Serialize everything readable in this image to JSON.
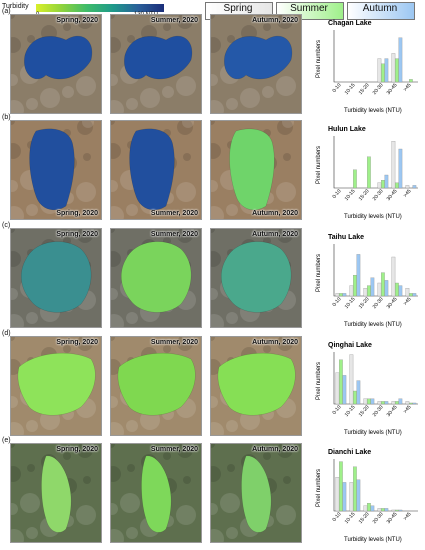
{
  "header": {
    "colorbar_title": "Turbidity",
    "colorbar_min": "0",
    "colorbar_max": "130 NTU",
    "legend": [
      {
        "label": "Spring",
        "color": "#e6e6e6"
      },
      {
        "label": "Summer",
        "color": "#9ff08a"
      },
      {
        "label": "Autumn",
        "color": "#9cc7f2"
      }
    ]
  },
  "panels": [
    {
      "letter": "(a)",
      "maps": [
        "Spring, 2020",
        "Summer, 2020",
        "Autumn, 2020"
      ],
      "lake": "Chagan Lake"
    },
    {
      "letter": "(b)",
      "maps": [
        "Spring, 2020",
        "Summer, 2020",
        "Autumn, 2020"
      ],
      "lake": "Hulun Lake"
    },
    {
      "letter": "(c)",
      "maps": [
        "Spring, 2020",
        "Summer, 2020",
        "Autumn, 2020"
      ],
      "lake": "Taihu Lake"
    },
    {
      "letter": "(d)",
      "maps": [
        "Spring, 2020",
        "Summer, 2020",
        "Autumn, 2020"
      ],
      "lake": "Qinghai Lake"
    },
    {
      "letter": "(e)",
      "maps": [
        "Spring, 2020",
        "Summer, 2020",
        "Autumn, 2020"
      ],
      "lake": "Dianchi Lake"
    }
  ],
  "chart_data": [
    {
      "type": "bar",
      "title": "Chagan Lake",
      "xlabel": "Turbidity levels (NTU)",
      "ylabel": "Pixel numbers",
      "categories": [
        "0-10",
        "10-15",
        "15-20",
        "20-30",
        "30-45",
        ">45"
      ],
      "series": [
        {
          "name": "Spring",
          "values": [
            0,
            0,
            0,
            0.45,
            0.55,
            0.0
          ]
        },
        {
          "name": "Summer",
          "values": [
            0,
            0,
            0,
            0.35,
            0.45,
            0.05
          ]
        },
        {
          "name": "Autumn",
          "values": [
            0,
            0,
            0,
            0.45,
            0.85,
            0.0
          ]
        }
      ]
    },
    {
      "type": "bar",
      "title": "Hulun Lake",
      "xlabel": "Turbidity levels (NTU)",
      "ylabel": "Pixel numbers",
      "categories": [
        "0-10",
        "10-15",
        "15-20",
        "20-30",
        "30-45",
        ">45"
      ],
      "series": [
        {
          "name": "Spring",
          "values": [
            0,
            0,
            0,
            0.1,
            0.9,
            0.05
          ]
        },
        {
          "name": "Summer",
          "values": [
            0,
            0.35,
            0.6,
            0.15,
            0.1,
            0
          ]
        },
        {
          "name": "Autumn",
          "values": [
            0,
            0,
            0,
            0.25,
            0.75,
            0.05
          ]
        }
      ]
    },
    {
      "type": "bar",
      "title": "Taihu Lake",
      "xlabel": "Turbidity levels (NTU)",
      "ylabel": "Pixel numbers",
      "categories": [
        "0-10",
        "10-15",
        "15-20",
        "20-30",
        "30-45",
        ">45"
      ],
      "series": [
        {
          "name": "Spring",
          "values": [
            0.05,
            0.2,
            0.15,
            0.25,
            0.75,
            0.15
          ]
        },
        {
          "name": "Summer",
          "values": [
            0.05,
            0.4,
            0.2,
            0.45,
            0.25,
            0.05
          ]
        },
        {
          "name": "Autumn",
          "values": [
            0.05,
            0.8,
            0.35,
            0.3,
            0.2,
            0.05
          ]
        }
      ]
    },
    {
      "type": "bar",
      "title": "Qinghai Lake",
      "xlabel": "Turbidity levels (NTU)",
      "ylabel": "Pixel numbers",
      "categories": [
        "0-10",
        "10-15",
        "15-20",
        "20-30",
        "30-45",
        ">45"
      ],
      "series": [
        {
          "name": "Spring",
          "values": [
            0.6,
            0.95,
            0.1,
            0.05,
            0.05,
            0.05
          ]
        },
        {
          "name": "Summer",
          "values": [
            0.85,
            0.25,
            0.1,
            0.05,
            0.05,
            0.02
          ]
        },
        {
          "name": "Autumn",
          "values": [
            0.55,
            0.45,
            0.1,
            0.05,
            0.1,
            0.02
          ]
        }
      ]
    },
    {
      "type": "bar",
      "title": "Dianchi Lake",
      "xlabel": "Turbidity levels (NTU)",
      "ylabel": "Pixel numbers",
      "categories": [
        "0-10",
        "10-15",
        "15-20",
        "20-30",
        "30-45",
        ">45"
      ],
      "series": [
        {
          "name": "Spring",
          "values": [
            0.65,
            0.55,
            0.1,
            0.05,
            0.02,
            0.0
          ]
        },
        {
          "name": "Summer",
          "values": [
            0.95,
            0.85,
            0.15,
            0.05,
            0.02,
            0.0
          ]
        },
        {
          "name": "Autumn",
          "values": [
            0.55,
            0.6,
            0.1,
            0.05,
            0.02,
            0.0
          ]
        }
      ]
    }
  ]
}
